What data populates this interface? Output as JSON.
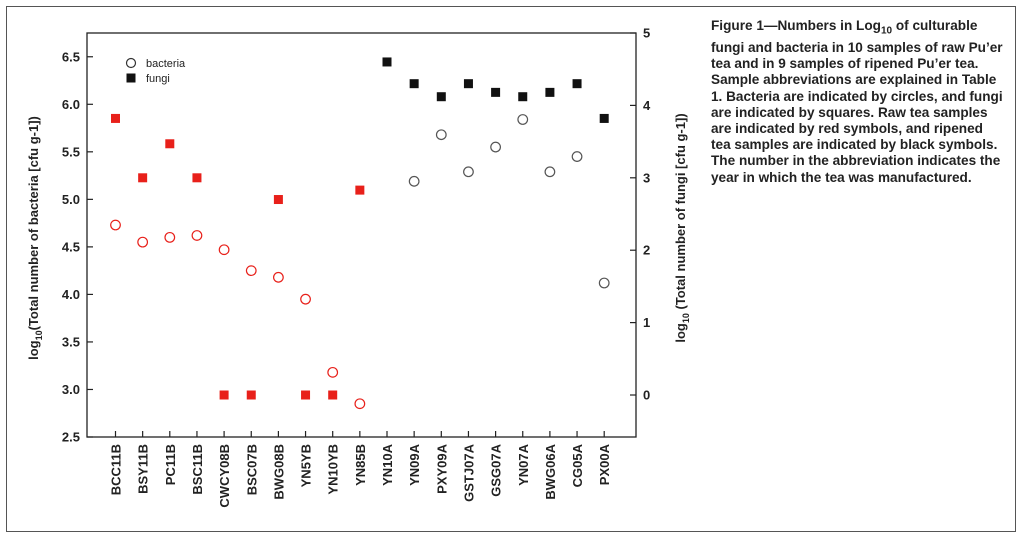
{
  "caption": {
    "line1": "Figure 1—Numbers in Log",
    "line1_sub": "10",
    "line1_rest": " of culturable",
    "body": "fungi and bacteria in 10 samples of raw Pu’er tea and in 9 samples of ripened Pu’er tea. Sample abbreviations are explained in Table 1. Bacteria are indicated by circles, and fungi are indicated by squares. Raw tea samples are indicated by red symbols, and ripened tea samples are indicated by black symbols. The number in the abbreviation indicates the year in which the tea was manufactured."
  },
  "chart_data": {
    "type": "scatter",
    "title": "",
    "xlabel": "",
    "ylabel": {
      "prefix": "log",
      "sub": "10",
      "rest": "(Total number of bacteria [cfu g-1])"
    },
    "y2label": {
      "prefix": "log",
      "sub": "10",
      "rest": " (Total number of fungi [cfu g-1])"
    },
    "ylim": [
      2.5,
      6.75
    ],
    "y2lim": [
      -0.58,
      5.0
    ],
    "yticks": [
      "2.5",
      "3.0",
      "3.5",
      "4.0",
      "4.5",
      "5.0",
      "5.5",
      "6.0",
      "6.5"
    ],
    "y2ticks": [
      "0",
      "1",
      "2",
      "3",
      "4",
      "5"
    ],
    "categories": [
      "BCC11B",
      "BSY11B",
      "PC11B",
      "BSC11B",
      "CWCY08B",
      "BSC07B",
      "BWG08B",
      "YN5YB",
      "YN10YB",
      "YN85B",
      "YN10A",
      "YN09A",
      "PXY09A",
      "GSTJ07A",
      "GSG07A",
      "YN07A",
      "BWG06A",
      "CG05A",
      "PX00A"
    ],
    "raw_count": 10,
    "colors": {
      "raw": "#e8201a",
      "ripened": "#111111",
      "ripened_bacteria": "#555555"
    },
    "legend": {
      "position": "top-left",
      "bacteria": "bacteria",
      "fungi": "fungi"
    },
    "series": [
      {
        "name": "bacteria",
        "axis": "left",
        "marker": "circle",
        "values": [
          4.73,
          4.55,
          4.6,
          4.62,
          4.47,
          4.25,
          4.18,
          3.95,
          3.18,
          2.85,
          null,
          5.19,
          5.68,
          5.29,
          5.55,
          5.84,
          5.29,
          5.45,
          4.12
        ]
      },
      {
        "name": "fungi",
        "axis": "right",
        "marker": "square",
        "values": [
          3.82,
          3.0,
          3.47,
          3.0,
          0.0,
          0.0,
          2.7,
          0.0,
          0.0,
          2.83,
          4.6,
          4.3,
          4.12,
          4.3,
          4.18,
          4.12,
          4.18,
          4.3,
          3.82
        ]
      }
    ]
  }
}
